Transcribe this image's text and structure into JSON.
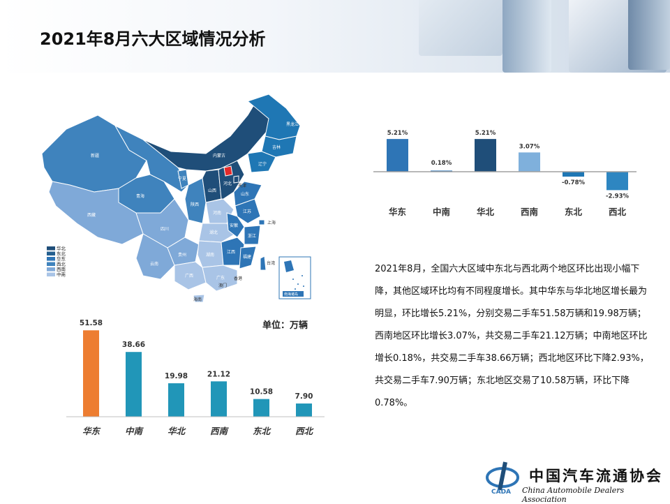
{
  "title": "2021年8月六大区域情况分析",
  "colors": {
    "dark_blue": "#1f4e79",
    "medium_blue": "#2e75b6",
    "light_blue": "#9dc3e6",
    "orange": "#ed7d31",
    "teal": "#2196b8"
  },
  "map": {
    "provinces": [
      "黑龙江",
      "吉林",
      "辽宁",
      "内蒙古",
      "新疆",
      "甘肃",
      "宁夏",
      "青海",
      "西藏",
      "四川",
      "陕西",
      "山西",
      "河北",
      "北京",
      "天津",
      "山东",
      "河南",
      "江苏",
      "安徽",
      "湖北",
      "浙江",
      "湖南",
      "江西",
      "福建",
      "贵州",
      "云南",
      "广西",
      "广东",
      "海南",
      "台湾",
      "上海",
      "香港",
      "澳门"
    ],
    "legend": [
      {
        "label": "华北",
        "color": "#1f4e79"
      },
      {
        "label": "东北",
        "color": "#245f8f"
      },
      {
        "label": "华东",
        "color": "#2e75b6"
      },
      {
        "label": "西北",
        "color": "#3f83bd"
      },
      {
        "label": "西南",
        "color": "#7fa9d8"
      },
      {
        "label": "中南",
        "color": "#a9c4e6"
      }
    ],
    "inset_label": "南海诸岛"
  },
  "change_chart": {
    "type": "bar",
    "categories": [
      "华东",
      "中南",
      "华北",
      "西南",
      "东北",
      "西北"
    ],
    "values": [
      5.21,
      0.18,
      5.21,
      3.07,
      -0.78,
      -2.93
    ],
    "value_labels": [
      "5.21%",
      "0.18%",
      "5.21%",
      "3.07%",
      "-0.78%",
      "-2.93%"
    ],
    "bar_colors": [
      "#2e75b6",
      "#2e75b6",
      "#1f4e79",
      "#7fb0dc",
      "#1f77b4",
      "#2e86c1"
    ]
  },
  "volume_chart": {
    "type": "bar",
    "unit_label": "单位：万辆",
    "categories": [
      "华东",
      "中南",
      "华北",
      "西南",
      "东北",
      "西北"
    ],
    "values": [
      51.58,
      38.66,
      19.98,
      21.12,
      10.58,
      7.9
    ],
    "value_labels": [
      "51.58",
      "38.66",
      "19.98",
      "21.12",
      "10.58",
      "7.90"
    ],
    "bar_colors": [
      "#ed7d31",
      "#2196b8",
      "#2196b8",
      "#2196b8",
      "#2196b8",
      "#2196b8"
    ]
  },
  "chart_data": [
    {
      "type": "bar",
      "categories": [
        "华东",
        "中南",
        "华北",
        "西南",
        "东北",
        "西北"
      ],
      "values": [
        5.21,
        0.18,
        5.21,
        3.07,
        -0.78,
        -2.93
      ],
      "ylabel": "",
      "title": ""
    },
    {
      "type": "bar",
      "categories": [
        "华东",
        "中南",
        "华北",
        "西南",
        "东北",
        "西北"
      ],
      "values": [
        51.58,
        38.66,
        19.98,
        21.12,
        10.58,
        7.9
      ],
      "ylabel": "单位：万辆",
      "title": ""
    }
  ],
  "description": "2021年8月，全国六大区域中东北与西北两个地区环比出现小幅下降，其他区域环比均有不同程度增长。其中华东与华北地区增长最为明显，环比增长5.21%，分别交易二手车51.58万辆和19.98万辆；西南地区环比增长3.07%，共交易二手车21.12万辆；中南地区环比增长0.18%，共交易二手车38.66万辆；西北地区环比下降2.93%，共交易二手车7.90万辆；东北地区交易了10.58万辆，环比下降0.78%。",
  "logo": {
    "name": "中国汽车流通协会",
    "subtitle": "China Automobile Dealers Association",
    "abbr": "CADA"
  }
}
